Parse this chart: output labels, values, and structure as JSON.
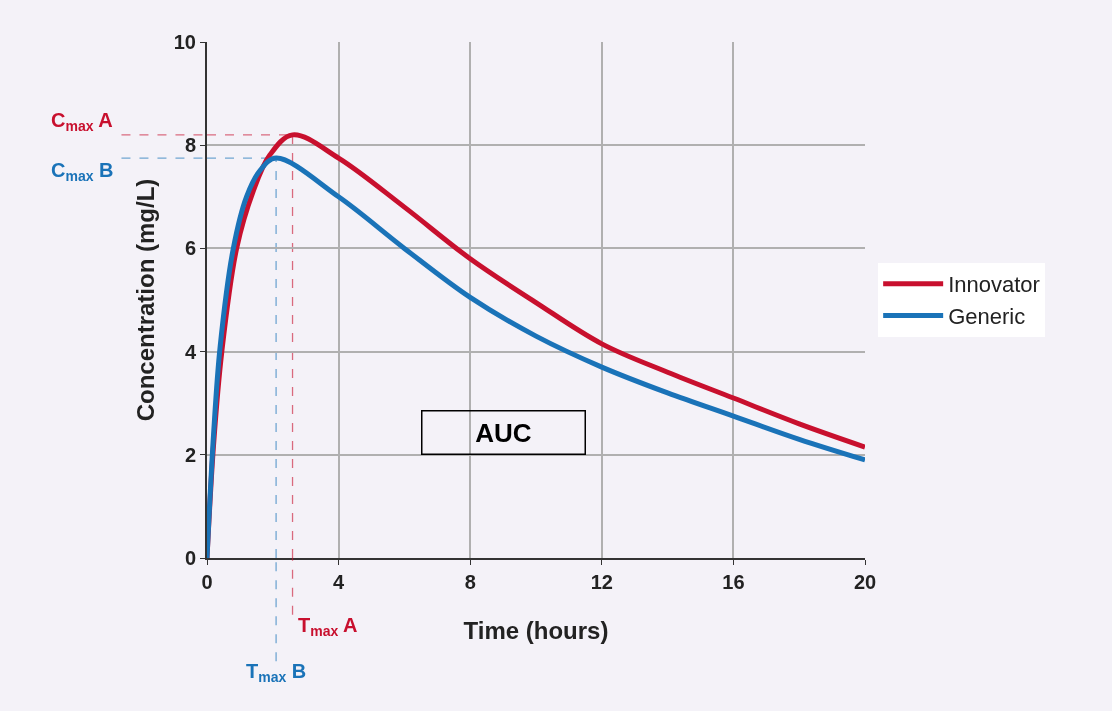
{
  "chart_data": {
    "type": "line",
    "xlabel": "Time (hours)",
    "ylabel": "Concentration (mg/L)",
    "xlim": [
      0,
      20
    ],
    "xticks": [
      0,
      4,
      8,
      12,
      16,
      20
    ],
    "ylim": [
      0,
      10
    ],
    "yticks": [
      0,
      2,
      4,
      6,
      8,
      10
    ],
    "grid": true,
    "legend": "right",
    "marker": "none",
    "line_style": "solid",
    "series": [
      {
        "name": "Innovator",
        "color": "#c8102e",
        "x": [
          0,
          0.2,
          0.45,
          0.9,
          1.4,
          1.9,
          2.6,
          4,
          6,
          8,
          10,
          12,
          14,
          16,
          18,
          20
        ],
        "values": [
          0,
          2.2,
          4,
          6,
          7.1,
          7.8,
          8.2,
          7.75,
          6.8,
          5.8,
          4.95,
          4.15,
          3.6,
          3.1,
          2.6,
          2.15
        ]
      },
      {
        "name": "Generic",
        "color": "#1a73b8",
        "x": [
          0,
          0.2,
          0.4,
          0.8,
          1.2,
          1.6,
          2.1,
          4,
          6,
          8,
          10,
          12,
          14,
          16,
          18,
          20
        ],
        "values": [
          0,
          2.4,
          4.1,
          6,
          7,
          7.5,
          7.75,
          7,
          6,
          5.05,
          4.3,
          3.7,
          3.2,
          2.75,
          2.3,
          1.9
        ]
      }
    ],
    "ref_lines": [
      {
        "axis": "y",
        "value": 8.2,
        "label": "C$_{max}$ A",
        "color": "#c8102e",
        "line_style": "dashed"
      },
      {
        "axis": "y",
        "value": 7.75,
        "label": "C$_{max}$ B",
        "color": "#1a73b8",
        "line_style": "dashed"
      },
      {
        "axis": "x",
        "value": 2.6,
        "label": "T$_{max}$ A",
        "color": "#c8102e",
        "line_style": "dashed"
      },
      {
        "axis": "x",
        "value": 2.1,
        "label": "T$_{max}$ B",
        "color": "#1a73b8",
        "line_style": "dashed"
      }
    ],
    "annotations": [
      "AUC"
    ]
  }
}
